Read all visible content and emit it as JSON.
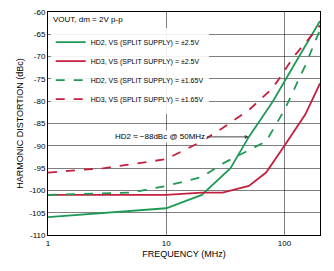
{
  "chart_data": {
    "type": "line",
    "title": "VOUT, dm = 2V p-p",
    "x_label": "FREQUENCY (MHz)",
    "y_label": "HARMONIC DISTORTION (dBc)",
    "log": "x",
    "grid": true,
    "legend": "top-left",
    "xlim": [
      1,
      200
    ],
    "xticks": [
      1,
      10,
      100
    ],
    "ylim": [
      -110,
      -60
    ],
    "yticks": [
      -110,
      -105,
      -100,
      -95,
      -90,
      -85,
      -80,
      -75,
      -70,
      -65,
      -60
    ],
    "annotations": [
      {
        "text": "HD2 ≈ −88dBc @ 50MHz",
        "x": 50,
        "y": -88
      }
    ],
    "series": [
      {
        "name": "HD2, VS (SPLIT SUPPLY) = ±2.5V",
        "color": "#1f9a55",
        "line_style": "solid",
        "x": [
          1,
          3,
          10,
          20,
          35,
          50,
          80,
          120,
          200
        ],
        "values": [
          -106,
          -105,
          -104,
          -101,
          -95,
          -88,
          -80,
          -72,
          -62
        ]
      },
      {
        "name": "HD3, VS (SPLIT SUPPLY) = ±2.5V",
        "color": "#c41f3e",
        "line_style": "solid",
        "x": [
          1,
          10,
          20,
          30,
          50,
          70,
          100,
          150,
          200
        ],
        "values": [
          -101,
          -101,
          -100.5,
          -100.5,
          -99,
          -96,
          -90,
          -83,
          -76
        ]
      },
      {
        "name": "HD2, VS (SPLIT SUPPLY) = ±1.65V",
        "color": "#1f9a55",
        "line_style": "dash",
        "x": [
          1,
          5,
          10,
          20,
          30,
          50,
          70,
          100,
          150,
          200
        ],
        "values": [
          -101,
          -100.5,
          -99,
          -97,
          -94,
          -91,
          -89,
          -82,
          -72,
          -64
        ]
      },
      {
        "name": "HD3, VS (SPLIT SUPPLY) = ±1.65V",
        "color": "#c41f3e",
        "line_style": "dash",
        "x": [
          1,
          3,
          10,
          20,
          30,
          50,
          80,
          120,
          200
        ],
        "values": [
          -96,
          -95,
          -93,
          -89,
          -86,
          -82,
          -77,
          -70,
          -63
        ]
      }
    ]
  }
}
